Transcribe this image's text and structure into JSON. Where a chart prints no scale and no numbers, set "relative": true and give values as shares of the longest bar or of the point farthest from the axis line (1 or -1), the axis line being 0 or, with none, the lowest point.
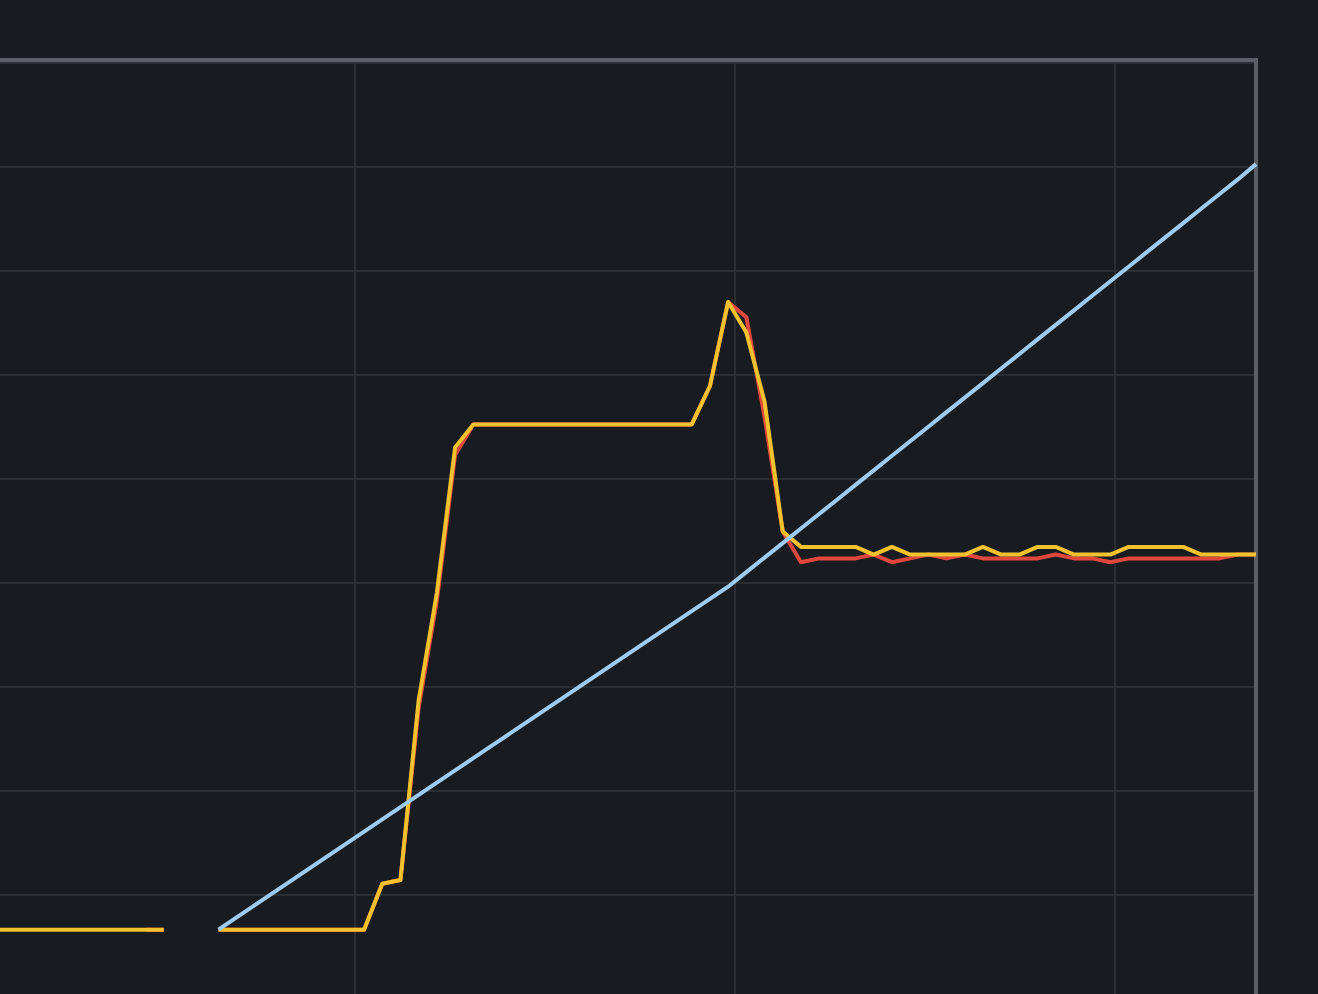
{
  "chart_data": {
    "type": "line",
    "relative": true,
    "grid": true,
    "legend": false,
    "marker": "none",
    "line_style": "solid",
    "categories": [
      null,
      null,
      null,
      null,
      null,
      null,
      null,
      null,
      null,
      null,
      null,
      null,
      null,
      null,
      null,
      null,
      null,
      null,
      null,
      null,
      null,
      null,
      null,
      null,
      null,
      null,
      null,
      null,
      null,
      null,
      null,
      null,
      null,
      null,
      null,
      null,
      null,
      null,
      null,
      null,
      null,
      null,
      null,
      null,
      null,
      null,
      null,
      null,
      null,
      null,
      null,
      null,
      null,
      null,
      null,
      null,
      null,
      null,
      null,
      null,
      null,
      null,
      null,
      null,
      null,
      null,
      null,
      null,
      null,
      null
    ],
    "series": [
      {
        "color": "#9ecbf0",
        "values": [
          null,
          null,
          null,
          null,
          null,
          null,
          null,
          null,
          null,
          null,
          null,
          null,
          0,
          0.016,
          0.032,
          0.048,
          0.064,
          0.08,
          0.096,
          0.112,
          0.128,
          0.144,
          0.16,
          0.176,
          0.192,
          0.208,
          0.224,
          0.24,
          0.256,
          0.272,
          0.288,
          0.304,
          0.32,
          0.336,
          0.352,
          0.368,
          0.384,
          0.4,
          0.416,
          0.432,
          0.448,
          0.467,
          0.486,
          0.505,
          0.524,
          0.543,
          0.562,
          0.581,
          0.6,
          0.619,
          0.638,
          0.657,
          0.676,
          0.695,
          0.714,
          0.733,
          0.752,
          0.771,
          0.79,
          0.809,
          0.828,
          0.847,
          0.866,
          0.885,
          0.904,
          0.923,
          0.942,
          0.961,
          0.98,
          1
        ]
      },
      {
        "color": "#f2c12e",
        "values": [
          0,
          0,
          0,
          0,
          0,
          0,
          0,
          0,
          0,
          0,
          null,
          null,
          0,
          0,
          0,
          0,
          0,
          0,
          0,
          0,
          0,
          0.06,
          0.065,
          0.3,
          0.44,
          0.63,
          0.66,
          0.66,
          0.66,
          0.66,
          0.66,
          0.66,
          0.66,
          0.66,
          0.66,
          0.66,
          0.66,
          0.66,
          0.66,
          0.71,
          0.82,
          0.78,
          0.69,
          0.52,
          0.5,
          0.5,
          0.5,
          0.5,
          0.49,
          0.5,
          0.49,
          0.49,
          0.49,
          0.49,
          0.5,
          0.49,
          0.49,
          0.5,
          0.5,
          0.49,
          0.49,
          0.49,
          0.5,
          0.5,
          0.5,
          0.5,
          0.49,
          0.49,
          0.49,
          0.49
        ]
      },
      {
        "color": "#e0483e",
        "values": [
          null,
          null,
          null,
          null,
          null,
          null,
          null,
          null,
          0,
          0,
          null,
          null,
          0,
          0,
          0,
          0,
          0,
          0,
          0,
          0,
          0,
          0.06,
          0.065,
          0.29,
          0.43,
          0.62,
          0.66,
          0.66,
          0.66,
          0.66,
          0.66,
          0.66,
          0.66,
          0.66,
          0.66,
          0.66,
          0.66,
          0.66,
          0.66,
          0.71,
          0.82,
          0.8,
          0.67,
          0.52,
          0.48,
          0.485,
          0.485,
          0.485,
          0.49,
          0.48,
          0.485,
          0.49,
          0.485,
          0.49,
          0.485,
          0.485,
          0.485,
          0.485,
          0.49,
          0.485,
          0.485,
          0.48,
          0.485,
          0.485,
          0.485,
          0.485,
          0.485,
          0.485,
          0.49,
          0.49
        ]
      }
    ]
  }
}
